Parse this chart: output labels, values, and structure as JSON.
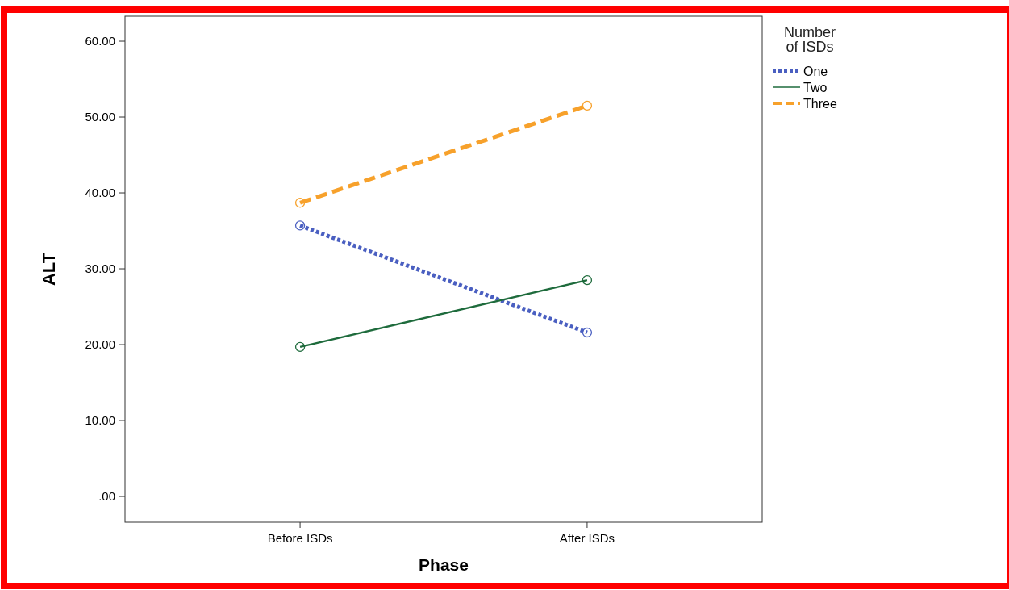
{
  "chart_data": {
    "type": "line",
    "xlabel": "Phase",
    "ylabel": "ALT",
    "legend_title": "Number of ISDs",
    "categories": [
      "Before ISDs",
      "After ISDs"
    ],
    "series": [
      {
        "name": "One",
        "color": "#4a5fc1",
        "values": [
          35.7,
          21.6
        ],
        "line_style": "dotted"
      },
      {
        "name": "Two",
        "color": "#1e6b3c",
        "values": [
          19.7,
          28.5
        ],
        "line_style": "solid"
      },
      {
        "name": "Three",
        "color": "#f7a12b",
        "values": [
          38.7,
          51.5
        ],
        "line_style": "dashed"
      }
    ],
    "ylim": [
      -3.4,
      63.3
    ],
    "yticks": [
      {
        "value": 0,
        "label": ".00"
      },
      {
        "value": 10,
        "label": "10.00"
      },
      {
        "value": 20,
        "label": "20.00"
      },
      {
        "value": 30,
        "label": "30.00"
      },
      {
        "value": 40,
        "label": "40.00"
      },
      {
        "value": 50,
        "label": "50.00"
      },
      {
        "value": 60,
        "label": "60.00"
      }
    ],
    "marker": "circle",
    "legend": "top right",
    "grid": false
  }
}
